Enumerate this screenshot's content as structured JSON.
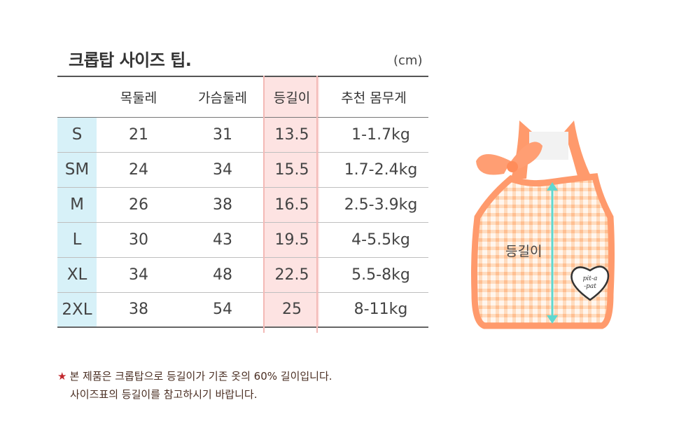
{
  "title": "크롭탑 사이즈 팁.",
  "unit": "(cm)",
  "table": {
    "headers": [
      "",
      "목둘레",
      "가슴둘레",
      "등길이",
      "추천 몸무게"
    ],
    "rows": [
      {
        "size": "S",
        "neck": "21",
        "chest": "31",
        "back": "13.5",
        "weight": "1-1.7kg"
      },
      {
        "size": "SM",
        "neck": "24",
        "chest": "34",
        "back": "15.5",
        "weight": "1.7-2.4kg"
      },
      {
        "size": "M",
        "neck": "26",
        "chest": "38",
        "back": "16.5",
        "weight": "2.5-3.9kg"
      },
      {
        "size": "L",
        "neck": "30",
        "chest": "43",
        "back": "19.5",
        "weight": "4-5.5kg"
      },
      {
        "size": "XL",
        "neck": "34",
        "chest": "48",
        "back": "22.5",
        "weight": "5.5-8kg"
      },
      {
        "size": "2XL",
        "neck": "38",
        "chest": "54",
        "back": "25",
        "weight": "8-11kg"
      }
    ]
  },
  "illustration": {
    "label": "등길이",
    "patch_text": [
      "pit-a",
      "-pat"
    ],
    "colors": {
      "trim": "#ff9a6c",
      "check": "#ffd2a8",
      "arrow": "#5fd8d0"
    }
  },
  "note": {
    "star": "★",
    "line1": "본 제품은 크롭탑으로 등길이가 기존 옷의 60% 길이입니다.",
    "line2": "사이즈표의 등길이를 참고하시기 바랍니다."
  }
}
